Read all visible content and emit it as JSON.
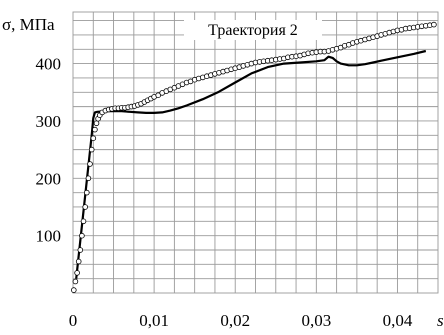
{
  "chart_data": {
    "type": "line",
    "title": "Траектория 2",
    "xlabel": "s",
    "ylabel": "σ, МПа",
    "xlim": [
      0,
      0.045
    ],
    "ylim": [
      0,
      490
    ],
    "grid": true,
    "x_tick_labels": [
      {
        "value": 0,
        "text": "0"
      },
      {
        "value": 0.01,
        "text": "0,01"
      },
      {
        "value": 0.02,
        "text": "0,02"
      },
      {
        "value": 0.03,
        "text": "0,03"
      },
      {
        "value": 0.04,
        "text": "0,04"
      }
    ],
    "y_tick_labels": [
      {
        "value": 100,
        "text": "100"
      },
      {
        "value": 200,
        "text": "200"
      },
      {
        "value": 300,
        "text": "300"
      },
      {
        "value": 400,
        "text": "400"
      }
    ],
    "series": [
      {
        "style": "line",
        "color": "#000000",
        "x": [
          0.0004,
          0.0023,
          0.0025,
          0.0027,
          0.003,
          0.004,
          0.005,
          0.006,
          0.007,
          0.008,
          0.009,
          0.01,
          0.011,
          0.012,
          0.013,
          0.014,
          0.016,
          0.018,
          0.02,
          0.022,
          0.024,
          0.026,
          0.028,
          0.03,
          0.031,
          0.0315,
          0.032,
          0.0325,
          0.033,
          0.034,
          0.035,
          0.036,
          0.037,
          0.038,
          0.04,
          0.042,
          0.0435
        ],
        "y": [
          25,
          275,
          305,
          315,
          316,
          317,
          317,
          317,
          316,
          315,
          314,
          314,
          315,
          318,
          322,
          327,
          338,
          351,
          367,
          383,
          394,
          400,
          402,
          404,
          406,
          412,
          410,
          404,
          400,
          397,
          397,
          399,
          402,
          405,
          411,
          417,
          422
        ]
      },
      {
        "style": "markers",
        "marker": "open-circle",
        "color": "#000000",
        "x": [
          0.0001,
          0.0003,
          0.0005,
          0.0007,
          0.0009,
          0.0011,
          0.0013,
          0.0015,
          0.0017,
          0.0019,
          0.0021,
          0.0023,
          0.0025,
          0.0027,
          0.0029,
          0.0031,
          0.0033,
          0.0036,
          0.004,
          0.0044,
          0.0048,
          0.0052,
          0.0056,
          0.006,
          0.0064,
          0.0068,
          0.0072,
          0.0076,
          0.008,
          0.0084,
          0.0088,
          0.0092,
          0.0096,
          0.01,
          0.0105,
          0.011,
          0.0115,
          0.012,
          0.0125,
          0.013,
          0.0135,
          0.014,
          0.0145,
          0.015,
          0.0155,
          0.016,
          0.0165,
          0.017,
          0.0175,
          0.018,
          0.0185,
          0.019,
          0.0195,
          0.02,
          0.0205,
          0.021,
          0.0215,
          0.022,
          0.0225,
          0.023,
          0.0235,
          0.024,
          0.0245,
          0.025,
          0.0255,
          0.026,
          0.0265,
          0.027,
          0.0275,
          0.028,
          0.0285,
          0.029,
          0.0295,
          0.03,
          0.0305,
          0.031,
          0.0315,
          0.032,
          0.0325,
          0.033,
          0.0335,
          0.034,
          0.0345,
          0.035,
          0.0355,
          0.036,
          0.0365,
          0.037,
          0.0375,
          0.038,
          0.0385,
          0.039,
          0.0395,
          0.04,
          0.0405,
          0.041,
          0.0415,
          0.042,
          0.0425,
          0.043,
          0.0435,
          0.044,
          0.0445
        ],
        "y": [
          5,
          20,
          35,
          55,
          75,
          100,
          125,
          150,
          175,
          200,
          225,
          250,
          270,
          285,
          296,
          304,
          310,
          315,
          318,
          320,
          321,
          322,
          322,
          323,
          323,
          324,
          325,
          326,
          328,
          330,
          333,
          336,
          339,
          342,
          345,
          349,
          352,
          355,
          358,
          361,
          364,
          367,
          369,
          372,
          374,
          376,
          378,
          380,
          382,
          384,
          386,
          388,
          390,
          392,
          394,
          396,
          398,
          400,
          402,
          403,
          404,
          405,
          406,
          407,
          408,
          409,
          411,
          412,
          413,
          414,
          416,
          418,
          419,
          420,
          421,
          421,
          422,
          424,
          426,
          428,
          431,
          433,
          436,
          438,
          440,
          442,
          444,
          446,
          448,
          450,
          452,
          454,
          456,
          458,
          459,
          461,
          462,
          463,
          464,
          465,
          466,
          467,
          468
        ]
      }
    ]
  }
}
